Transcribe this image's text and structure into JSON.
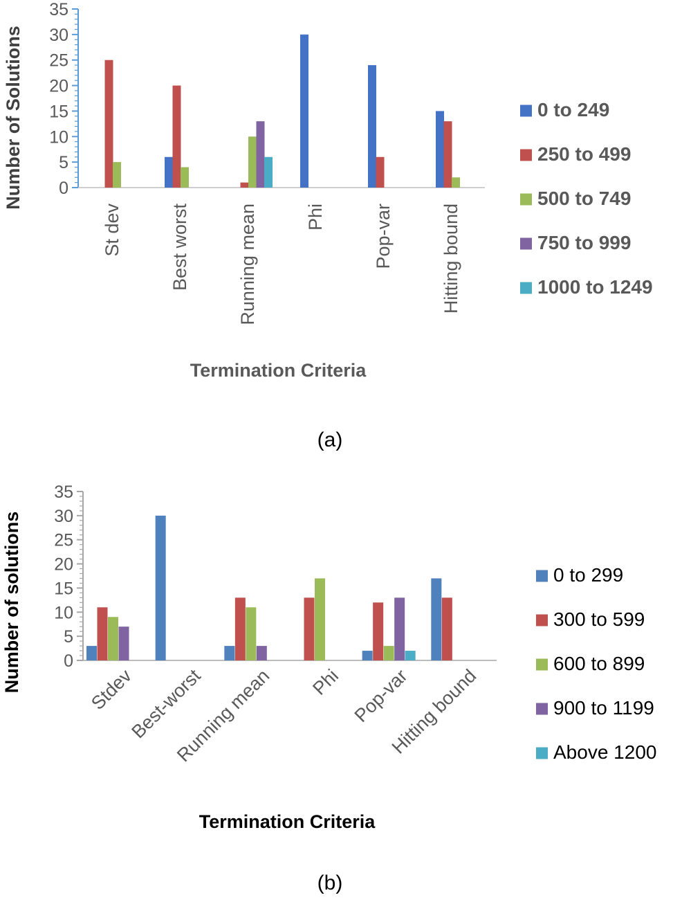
{
  "chart_data": [
    {
      "type": "bar",
      "caption": "(a)",
      "xlabel": "Termination Criteria",
      "ylabel": "Number of  Solutions",
      "ylim": [
        0,
        35
      ],
      "yticks": [
        0,
        5,
        10,
        15,
        20,
        25,
        30,
        35
      ],
      "categories": [
        "St dev",
        "Best worst",
        "Running mean",
        "Phi",
        "Pop-var",
        "Hitting bound"
      ],
      "legend_position": "right",
      "series": [
        {
          "name": "0 to 249",
          "color": "#4472C4",
          "values": [
            0,
            6,
            0,
            30,
            24,
            15
          ]
        },
        {
          "name": "250 to 499",
          "color": "#C0504D",
          "values": [
            25,
            20,
            1,
            0,
            6,
            13
          ]
        },
        {
          "name": "500 to 749",
          "color": "#9BBB59",
          "values": [
            5,
            4,
            10,
            0,
            0,
            2
          ]
        },
        {
          "name": "750 to 999",
          "color": "#8064A2",
          "values": [
            0,
            0,
            13,
            0,
            0,
            0
          ]
        },
        {
          "name": "1000 to 1249",
          "color": "#4BACC6",
          "values": [
            0,
            0,
            6,
            0,
            0,
            0
          ]
        }
      ]
    },
    {
      "type": "bar",
      "caption": "(b)",
      "xlabel": "Termination Criteria",
      "ylabel": "Number of solutions",
      "ylim": [
        0,
        35
      ],
      "yticks": [
        0,
        5,
        10,
        15,
        20,
        25,
        30,
        35
      ],
      "categories": [
        "Stdev",
        "Best-worst",
        "Running mean",
        "Phi",
        "Pop-var",
        "Hitting bound"
      ],
      "legend_position": "right",
      "series": [
        {
          "name": "0 to 299",
          "color": "#4F81BD",
          "values": [
            3,
            30,
            3,
            0,
            2,
            17
          ]
        },
        {
          "name": "300 to 599",
          "color": "#C0504D",
          "values": [
            11,
            0,
            13,
            13,
            12,
            13
          ]
        },
        {
          "name": "600 to 899",
          "color": "#9BBB59",
          "values": [
            9,
            0,
            11,
            17,
            3,
            0
          ]
        },
        {
          "name": "900 to 1199",
          "color": "#8064A2",
          "values": [
            7,
            0,
            3,
            0,
            13,
            0
          ]
        },
        {
          "name": "Above 1200",
          "color": "#4BACC6",
          "values": [
            0,
            0,
            0,
            0,
            2,
            0
          ]
        }
      ]
    }
  ]
}
